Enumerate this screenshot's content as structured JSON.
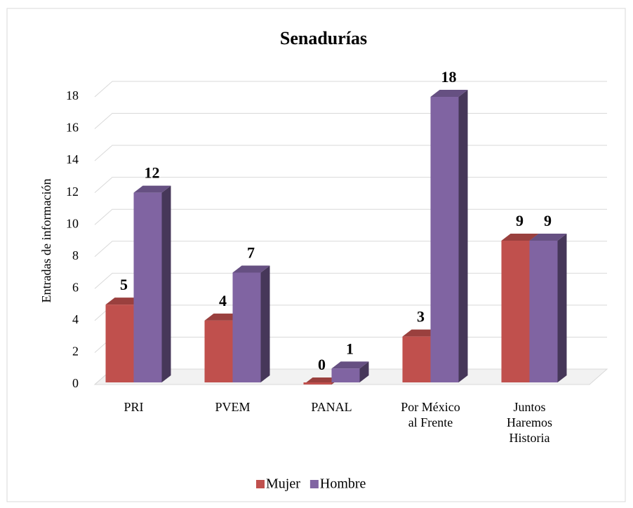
{
  "chart_data": {
    "type": "bar3d",
    "title": "Senadurías",
    "y_label": "Entradas de información",
    "categories": [
      "PRI",
      "PVEM",
      "PANAL",
      "Por México al Frente",
      "Juntos Haremos Historia"
    ],
    "series": [
      {
        "name": "Mujer",
        "color": "#c0504d",
        "values": [
          5,
          4,
          0,
          3,
          9
        ]
      },
      {
        "name": "Hombre",
        "color": "#8064a2",
        "values": [
          12,
          7,
          1,
          18,
          9
        ]
      }
    ],
    "ylim": [
      0,
      18
    ],
    "yticks": [
      0,
      2,
      4,
      6,
      8,
      10,
      12,
      14,
      16,
      18
    ],
    "grid": true,
    "legend": "bottom"
  }
}
